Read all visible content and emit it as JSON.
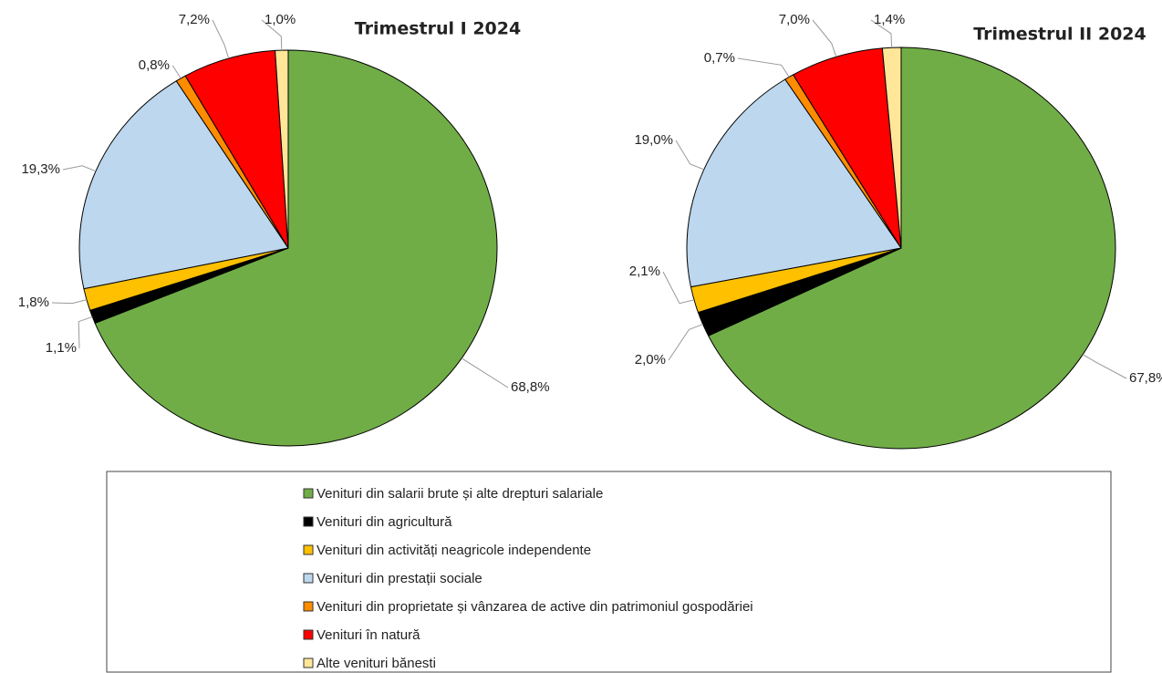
{
  "chart_data": [
    {
      "type": "pie",
      "title": "Trimestrul  I 2024",
      "categories": [
        "Venituri din salarii brute și alte drepturi salariale",
        "Venituri din agricultură",
        "Venituri din activități neagricole independente",
        "Venituri din prestații sociale",
        "Venituri din proprietate și vânzarea de active din patrimoniul gospodăriei",
        "Venituri în natură",
        "Alte venituri bănesti"
      ],
      "colors": [
        "#70ad47",
        "#000000",
        "#ffc000",
        "#bdd7ee",
        "#ff8c00",
        "#ff0000",
        "#ffe699"
      ],
      "values": [
        68.8,
        1.1,
        1.8,
        19.3,
        0.8,
        7.2,
        1.0
      ],
      "value_labels": [
        "68,8%",
        "1,1%",
        "1,8%",
        "19,3%",
        "0,8%",
        "7,2%",
        "1,0%"
      ]
    },
    {
      "type": "pie",
      "title": "Trimestrul  II 2024",
      "values": [
        67.8,
        2.0,
        2.1,
        19.0,
        0.7,
        7.0,
        1.4
      ],
      "value_labels": [
        "67,8%",
        "2,0%",
        "2,1%",
        "19,0%",
        "0,7%",
        "7,0%",
        "1,4%"
      ]
    }
  ]
}
